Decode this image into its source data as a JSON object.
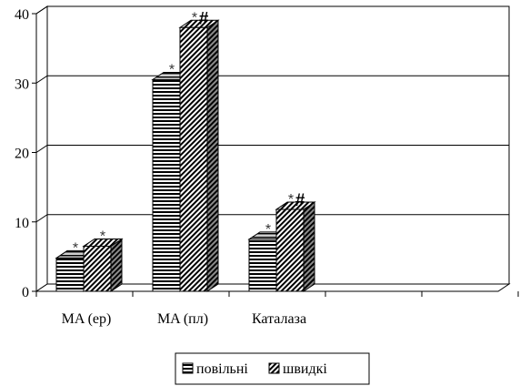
{
  "chart_data": {
    "type": "bar",
    "categories": [
      "MA (ер)",
      "MA (пл)",
      "Каталаза"
    ],
    "series": [
      {
        "name": "повільні",
        "values": [
          4.8,
          30.5,
          7.5
        ],
        "annotations": [
          "*",
          "*",
          "*"
        ]
      },
      {
        "name": "швидкі",
        "values": [
          6.5,
          38.0,
          11.8
        ],
        "annotations": [
          "*",
          "*#",
          "*#"
        ]
      }
    ],
    "ylim": [
      0,
      40
    ],
    "yticks": [
      "0",
      "10",
      "20",
      "30",
      "40"
    ],
    "grid": true,
    "legend_position": "bottom",
    "extra_empty_slots": 2
  }
}
